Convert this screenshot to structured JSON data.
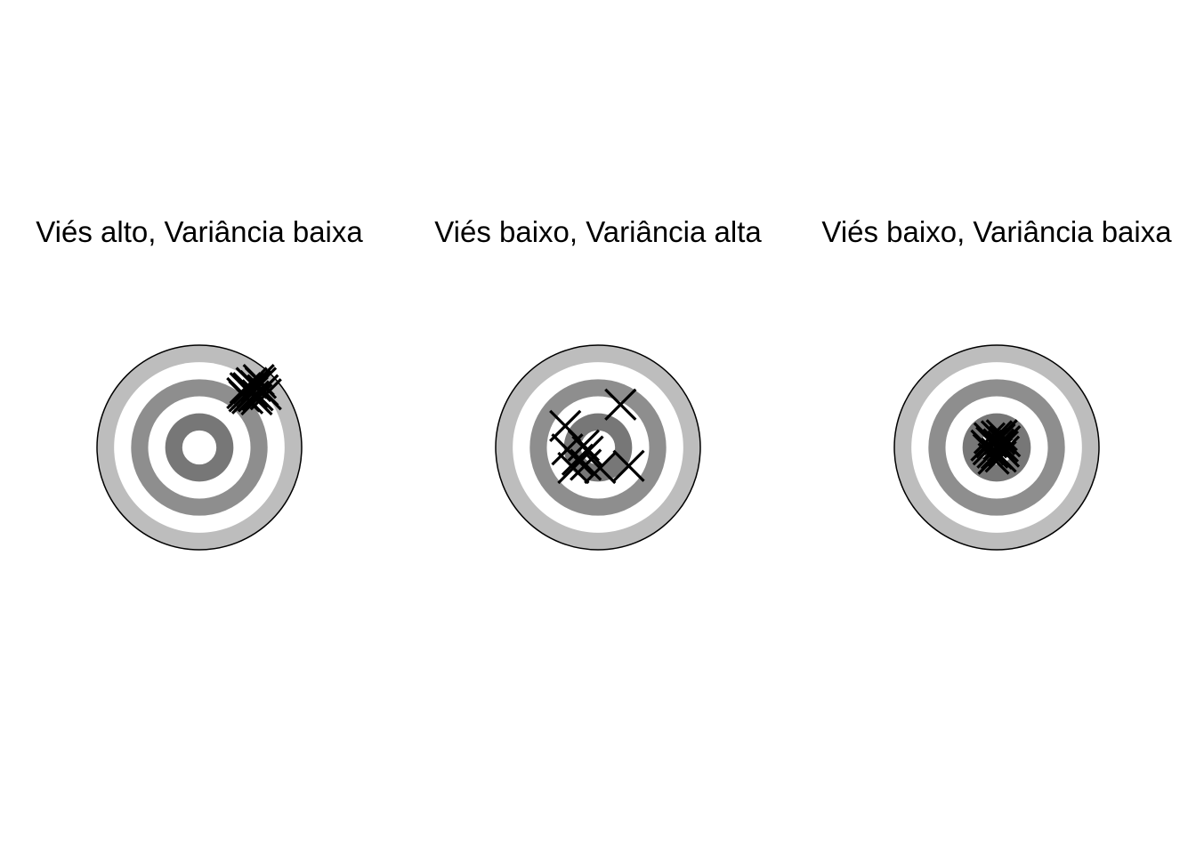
{
  "chart_data": {
    "type": "scatter",
    "description_units": "shot coordinates relative to target center; outer ring radius = 1",
    "ring_colors": [
      "#bdbdbd",
      "#ffffff",
      "#8e8e8e",
      "#ffffff",
      "#777777",
      "#ffffff"
    ],
    "marker": "x",
    "panels": [
      {
        "title": "Viés alto, Variância baixa",
        "shots": [
          {
            "x": 0.42,
            "y": 0.53
          },
          {
            "x": 0.48,
            "y": 0.58
          },
          {
            "x": 0.52,
            "y": 0.54
          },
          {
            "x": 0.55,
            "y": 0.6
          },
          {
            "x": 0.57,
            "y": 0.51
          },
          {
            "x": 0.62,
            "y": 0.56
          },
          {
            "x": 0.47,
            "y": 0.48
          },
          {
            "x": 0.56,
            "y": 0.47
          },
          {
            "x": 0.51,
            "y": 0.63
          },
          {
            "x": 0.6,
            "y": 0.63
          },
          {
            "x": 0.45,
            "y": 0.58
          },
          {
            "x": 0.65,
            "y": 0.52
          },
          {
            "x": 0.53,
            "y": 0.5
          },
          {
            "x": 0.58,
            "y": 0.66
          },
          {
            "x": 0.44,
            "y": 0.5
          }
        ]
      },
      {
        "title": "Viés baixo, Variância alta",
        "shots": [
          {
            "x": 0.22,
            "y": 0.42
          },
          {
            "x": -0.32,
            "y": 0.21
          },
          {
            "x": -0.3,
            "y": -0.02
          },
          {
            "x": -0.2,
            "y": -0.12
          },
          {
            "x": -0.12,
            "y": -0.17
          },
          {
            "x": -0.1,
            "y": -0.04
          },
          {
            "x": 0.02,
            "y": -0.2
          },
          {
            "x": 0.3,
            "y": -0.18
          },
          {
            "x": -0.24,
            "y": -0.2
          },
          {
            "x": -0.14,
            "y": 0.02
          }
        ]
      },
      {
        "title": "Viés baixo, Variância baixa",
        "shots": [
          {
            "x": -0.05,
            "y": 0.05
          },
          {
            "x": 0.03,
            "y": 0.08
          },
          {
            "x": 0.06,
            "y": 0.01
          },
          {
            "x": -0.08,
            "y": -0.02
          },
          {
            "x": 0.0,
            "y": -0.06
          },
          {
            "x": 0.04,
            "y": -0.09
          },
          {
            "x": -0.03,
            "y": -0.11
          },
          {
            "x": 0.08,
            "y": 0.06
          },
          {
            "x": -0.1,
            "y": 0.02
          },
          {
            "x": 0.02,
            "y": 0.03
          },
          {
            "x": -0.04,
            "y": -0.05
          },
          {
            "x": 0.07,
            "y": -0.04
          },
          {
            "x": 0.0,
            "y": 0.11
          },
          {
            "x": -0.07,
            "y": 0.09
          },
          {
            "x": 0.05,
            "y": 0.12
          }
        ]
      }
    ]
  }
}
